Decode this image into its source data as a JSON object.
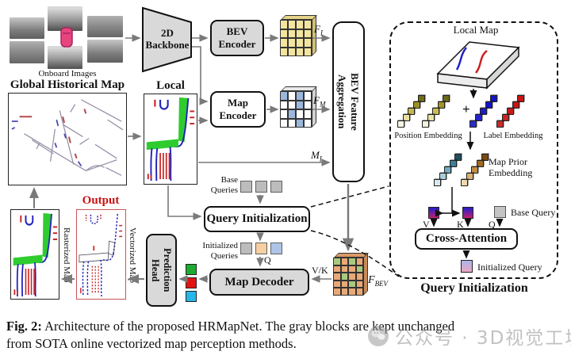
{
  "diagram": {
    "onboard_images_label": "Onboard Images",
    "global_map_title": "Global Historical Map",
    "local_map_title": "Local Map",
    "backbone_label": "2D Backbone",
    "bev_encoder_label": "BEV Encoder",
    "map_encoder_label": "Map Encoder",
    "bev_fa_lines": [
      "BEV Feature",
      "Aggregation"
    ],
    "query_init_label": "Query Initialization",
    "map_decoder_label": "Map Decoder",
    "prediction_head_lines": [
      "Prediction",
      "Head"
    ],
    "base_queries_label": "Base Queries",
    "initialized_queries_label": "Initialized Queries",
    "q_label": "Q",
    "vk_label": "V/K",
    "output_label": "Output",
    "rasterized_map_label": "Rasterized Map",
    "vectorized_map_label": "Vectorized Map",
    "math": {
      "fi_base": "F",
      "fi_sub": "I",
      "fm_base": "F",
      "fm_sub": "M",
      "ml_base": "M",
      "ml_sub": "L",
      "fbev_base": "F",
      "fbev_sub": "BEV"
    }
  },
  "panel": {
    "local_map_title": "Local Map",
    "position_embedding_label": "Position Embedding",
    "plus": "+",
    "label_embedding_label": "Label Embedding",
    "map_prior_embedding_label": "Map Prior Embedding",
    "v": "V",
    "k": "K",
    "q": "Q",
    "base_query_label": "Base Query",
    "cross_attention_label": "Cross-Attention",
    "initialized_query_label": "Initialized Query",
    "caption": "Query Initialization",
    "cubes": {
      "position": [
        [
          "#716c15",
          "#9e8f26",
          "#c5b74f",
          "#e6dfa0",
          "#f6f4e4"
        ],
        [
          "#6b681a",
          "#a39324",
          "#cbbd58",
          "#e8e2a6",
          "#f4f2e0"
        ]
      ],
      "label": [
        [
          "#1414c8",
          "#1414c8",
          "#1c1cc8",
          "#2424cc",
          "#2c2cc8"
        ],
        [
          "#c81414",
          "#c81414",
          "#c81c1c",
          "#cc2424",
          "#c82c2c"
        ]
      ],
      "map_prior": [
        [
          "#1f4f5e",
          "#3c7f96",
          "#71abc1",
          "#a9ced9",
          "#d8e9ed"
        ],
        [
          "#7a4a12",
          "#a06a1e",
          "#c28e44",
          "#dcb274",
          "#f0d6ac"
        ]
      ]
    }
  },
  "grids": {
    "f_i": {
      "palette": {
        "y": "#f3e4a0"
      },
      "top": "#e6d38a",
      "side": "#d2bf74",
      "cells": [
        [
          "y",
          "y",
          "y",
          "y"
        ],
        [
          "y",
          "y",
          "y",
          "y"
        ],
        [
          "y",
          "y",
          "y",
          "y"
        ],
        [
          "y",
          "y",
          "y",
          "y"
        ]
      ]
    },
    "f_m": {
      "palette": {
        "b": "#9cb7dc",
        "w": "#ffffff"
      },
      "top": "#e9e9e9",
      "side": "#d2d2d2",
      "cells": [
        [
          "b",
          "w",
          "b",
          "w"
        ],
        [
          "w",
          "w",
          "b",
          "w"
        ],
        [
          "w",
          "b",
          "w",
          "w"
        ],
        [
          "w",
          "w",
          "b",
          "w"
        ]
      ]
    },
    "f_bev": {
      "palette": {
        "o": "#e9a876",
        "g": "#a9c97e"
      },
      "top": "#d99a66",
      "side": "#c78a58",
      "cells": [
        [
          "g",
          "o",
          "g",
          "o"
        ],
        [
          "o",
          "o",
          "o",
          "g"
        ],
        [
          "o",
          "g",
          "o",
          "o"
        ],
        [
          "o",
          "o",
          "g",
          "o"
        ],
        [
          "o",
          "o",
          "o",
          "o"
        ]
      ]
    }
  },
  "queries": {
    "base_colors": [
      "#bcbcbc",
      "#bcbcbc",
      "#bcbcbc"
    ],
    "initialized_colors": [
      "#bcbcbc",
      "#f6cfa2",
      "#adc4e6"
    ],
    "decoder_output_colors": [
      "#1faa32",
      "#e51212",
      "#27b6ea"
    ]
  },
  "caption": {
    "prefix": "Fig. 2:",
    "line1": "Architecture of the proposed HRMapNet. The gray blocks are kept unchanged",
    "line2": "from SOTA online vectorized map perception methods."
  },
  "watermark": {
    "text": "公众号 · 3D视觉工坊"
  }
}
